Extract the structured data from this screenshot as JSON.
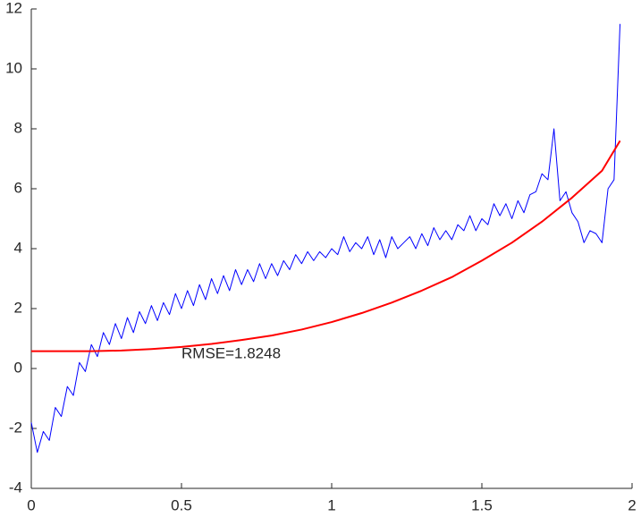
{
  "chart_data": {
    "type": "line",
    "xlim": [
      0,
      2
    ],
    "ylim": [
      -4,
      12
    ],
    "xticks": [
      0,
      0.5,
      1,
      1.5,
      2
    ],
    "yticks": [
      -4,
      -2,
      0,
      2,
      4,
      6,
      8,
      10,
      12
    ],
    "annotation": "RMSE=1.8248",
    "series": [
      {
        "color": "#0000ff",
        "x": [
          0,
          0.02,
          0.04,
          0.06,
          0.08,
          0.1,
          0.12,
          0.14,
          0.16,
          0.18,
          0.2,
          0.22,
          0.24,
          0.26,
          0.28,
          0.3,
          0.32,
          0.34,
          0.36,
          0.38,
          0.4,
          0.42,
          0.44,
          0.46,
          0.48,
          0.5,
          0.52,
          0.54,
          0.56,
          0.58,
          0.6,
          0.62,
          0.64,
          0.66,
          0.68,
          0.7,
          0.72,
          0.74,
          0.76,
          0.78,
          0.8,
          0.82,
          0.84,
          0.86,
          0.88,
          0.9,
          0.92,
          0.94,
          0.96,
          0.98,
          1,
          1.02,
          1.04,
          1.06,
          1.08,
          1.1,
          1.12,
          1.14,
          1.16,
          1.18,
          1.2,
          1.22,
          1.24,
          1.26,
          1.28,
          1.3,
          1.32,
          1.34,
          1.36,
          1.38,
          1.4,
          1.42,
          1.44,
          1.46,
          1.48,
          1.5,
          1.52,
          1.54,
          1.56,
          1.58,
          1.6,
          1.62,
          1.64,
          1.66,
          1.68,
          1.7,
          1.72,
          1.74,
          1.76,
          1.78,
          1.8,
          1.82,
          1.84,
          1.86,
          1.88,
          1.9,
          1.92,
          1.94,
          1.96
        ],
        "values": [
          -1.8,
          -2.8,
          -2.1,
          -2.4,
          -1.3,
          -1.6,
          -0.6,
          -0.9,
          0.2,
          -0.1,
          0.8,
          0.4,
          1.2,
          0.8,
          1.5,
          1.0,
          1.7,
          1.2,
          1.9,
          1.5,
          2.1,
          1.6,
          2.2,
          1.8,
          2.5,
          2.0,
          2.6,
          2.1,
          2.8,
          2.3,
          3.0,
          2.5,
          3.1,
          2.6,
          3.3,
          2.8,
          3.3,
          2.9,
          3.5,
          3.0,
          3.5,
          3.1,
          3.6,
          3.3,
          3.8,
          3.5,
          3.9,
          3.6,
          3.9,
          3.7,
          4.0,
          3.8,
          4.4,
          3.9,
          4.2,
          4.0,
          4.4,
          3.8,
          4.3,
          3.7,
          4.4,
          4.0,
          4.2,
          4.4,
          4.0,
          4.5,
          4.1,
          4.7,
          4.3,
          4.6,
          4.3,
          4.8,
          4.6,
          5.1,
          4.6,
          5.0,
          4.8,
          5.5,
          5.1,
          5.5,
          5.0,
          5.6,
          5.2,
          5.8,
          5.9,
          6.5,
          6.3,
          8.0,
          5.6,
          5.9,
          5.2,
          4.9,
          4.2,
          4.6,
          4.5,
          4.2,
          6.0,
          6.3,
          11.5
        ]
      },
      {
        "color": "#ff0000",
        "x": [
          0,
          0.1,
          0.2,
          0.3,
          0.4,
          0.5,
          0.6,
          0.7,
          0.8,
          0.9,
          1,
          1.1,
          1.2,
          1.3,
          1.4,
          1.5,
          1.6,
          1.7,
          1.8,
          1.9,
          1.96
        ],
        "values": [
          0.58,
          0.58,
          0.58,
          0.6,
          0.65,
          0.72,
          0.82,
          0.95,
          1.1,
          1.3,
          1.55,
          1.85,
          2.2,
          2.6,
          3.05,
          3.6,
          4.2,
          4.9,
          5.7,
          6.6,
          7.6
        ]
      }
    ]
  }
}
